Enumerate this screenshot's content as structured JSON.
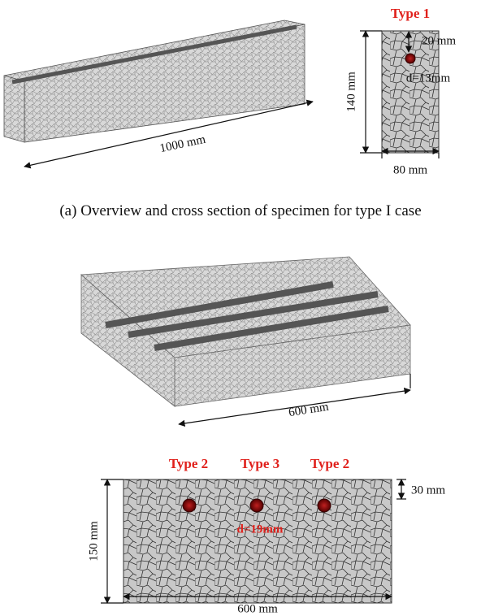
{
  "panel_a": {
    "type_label": "Type 1",
    "cover": "20 mm",
    "diameter": "d=13mm",
    "height": "140 mm",
    "length": "1000 mm",
    "width": "80 mm",
    "caption": "(a) Overview and cross section of specimen for type I case"
  },
  "panel_b": {
    "length_3d": "600 mm",
    "type_labels": [
      "Type 2",
      "Type 3",
      "Type 2"
    ],
    "cover": "30 mm",
    "height": "150 mm",
    "diameter": "d=19mm",
    "width": "600 mm"
  }
}
